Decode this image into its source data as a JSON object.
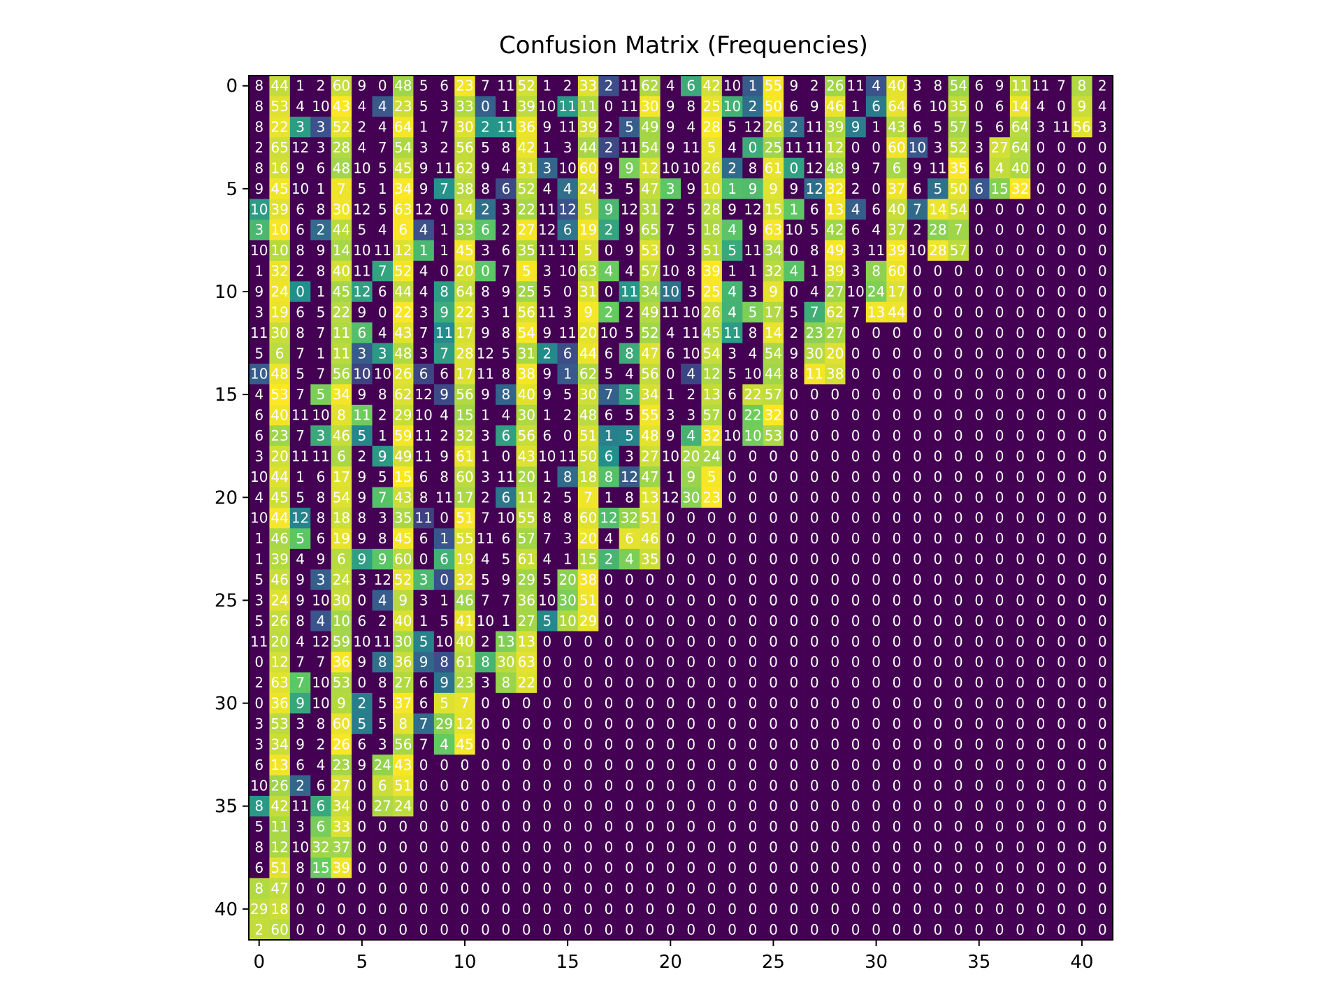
{
  "chart_data": {
    "type": "heatmap",
    "title": "Confusion Matrix (Frequencies)",
    "xlabel": "",
    "ylabel": "",
    "rows": 42,
    "cols": 42,
    "x_ticks": [
      "0",
      "5",
      "10",
      "15",
      "20",
      "25",
      "30",
      "35",
      "40"
    ],
    "y_ticks": [
      "0",
      "5",
      "10",
      "15",
      "20",
      "25",
      "30",
      "35",
      "40"
    ],
    "colormap": "viridis",
    "colors": {
      "low": "#440154",
      "mid": "#21918c",
      "high": "#fde725"
    },
    "column_nonzero_rows": [
      42,
      42,
      39,
      39,
      39,
      36,
      36,
      36,
      33,
      33,
      33,
      30,
      30,
      30,
      27,
      27,
      27,
      24,
      24,
      24,
      21,
      21,
      21,
      18,
      18,
      18,
      15,
      15,
      15,
      12,
      12,
      12,
      9,
      9,
      9,
      6,
      6,
      6,
      3,
      3,
      3,
      3
    ],
    "cells_note_values": "Each cell shows its count; cells beyond the populated region are 0."
  }
}
